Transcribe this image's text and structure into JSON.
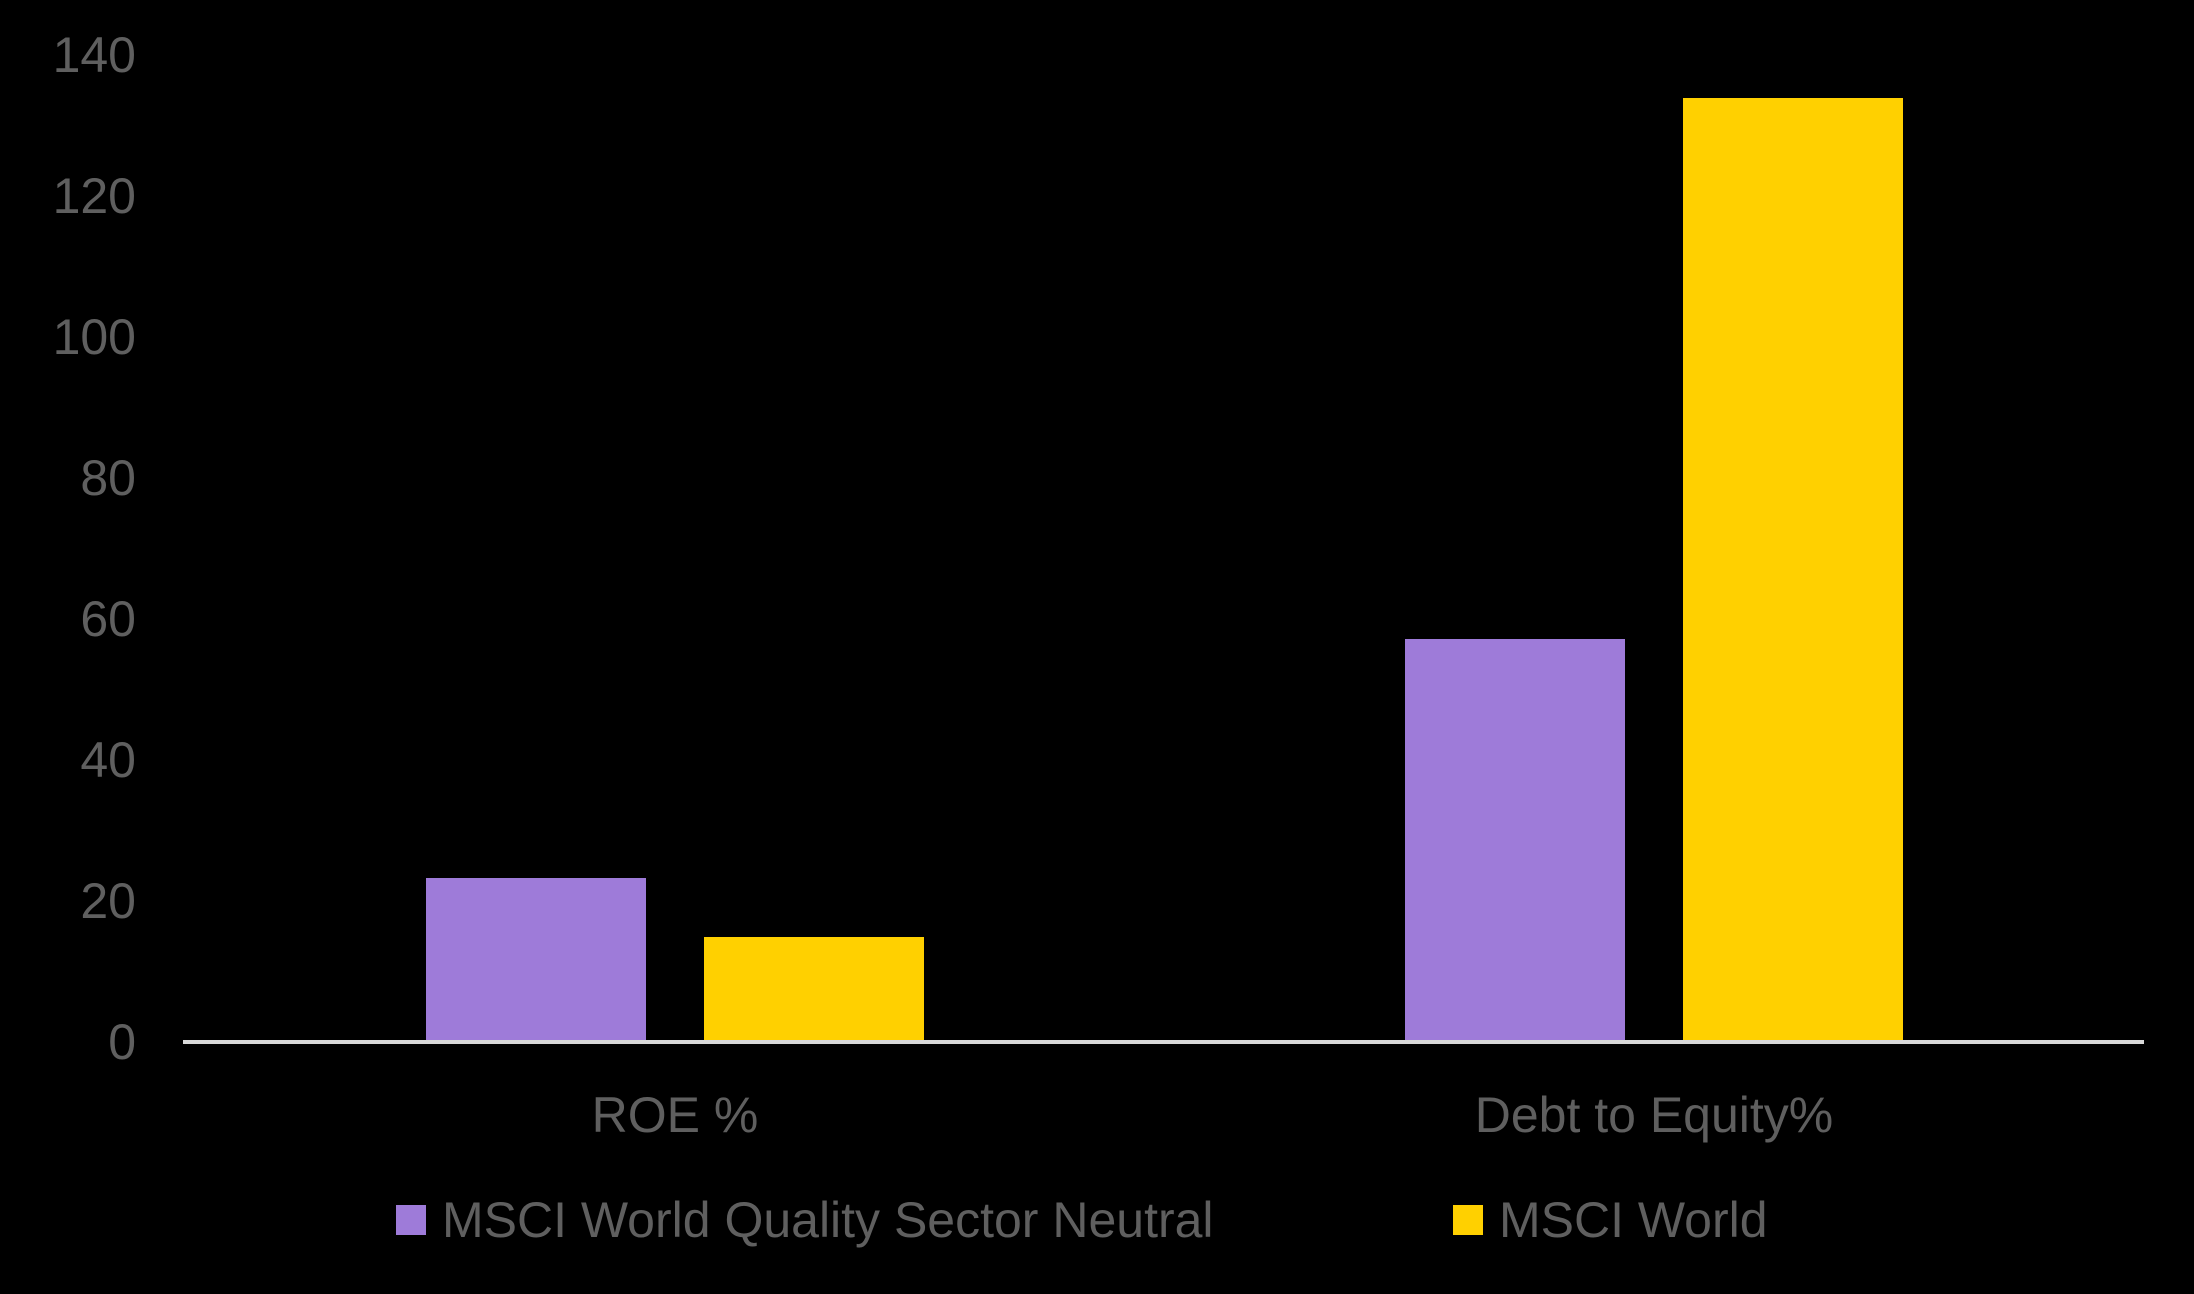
{
  "chart_data": {
    "type": "bar",
    "title": "",
    "xlabel": "",
    "ylabel": "",
    "categories": [
      "ROE %",
      "Debt to Equity%"
    ],
    "series": [
      {
        "name": "MSCI World Quality Sector Neutral",
        "color": "#9e7bd9",
        "values": [
          23.3,
          57.2
        ]
      },
      {
        "name": "MSCI World",
        "color": "#ffd000",
        "values": [
          14.9,
          133.9
        ]
      }
    ],
    "ylim": [
      0,
      140
    ],
    "yticks": [
      "0",
      "20",
      "40",
      "60",
      "80",
      "100",
      "120",
      "140"
    ],
    "grid": false,
    "legend_position": "bottom"
  },
  "legend": {
    "items": [
      {
        "label": "MSCI World Quality Sector Neutral",
        "color": "#9e7bd9"
      },
      {
        "label": "MSCI World",
        "color": "#ffd000"
      }
    ]
  },
  "colors": {
    "background": "#000000",
    "text": "#5f5f5f",
    "axis": "#d9d9d9"
  }
}
